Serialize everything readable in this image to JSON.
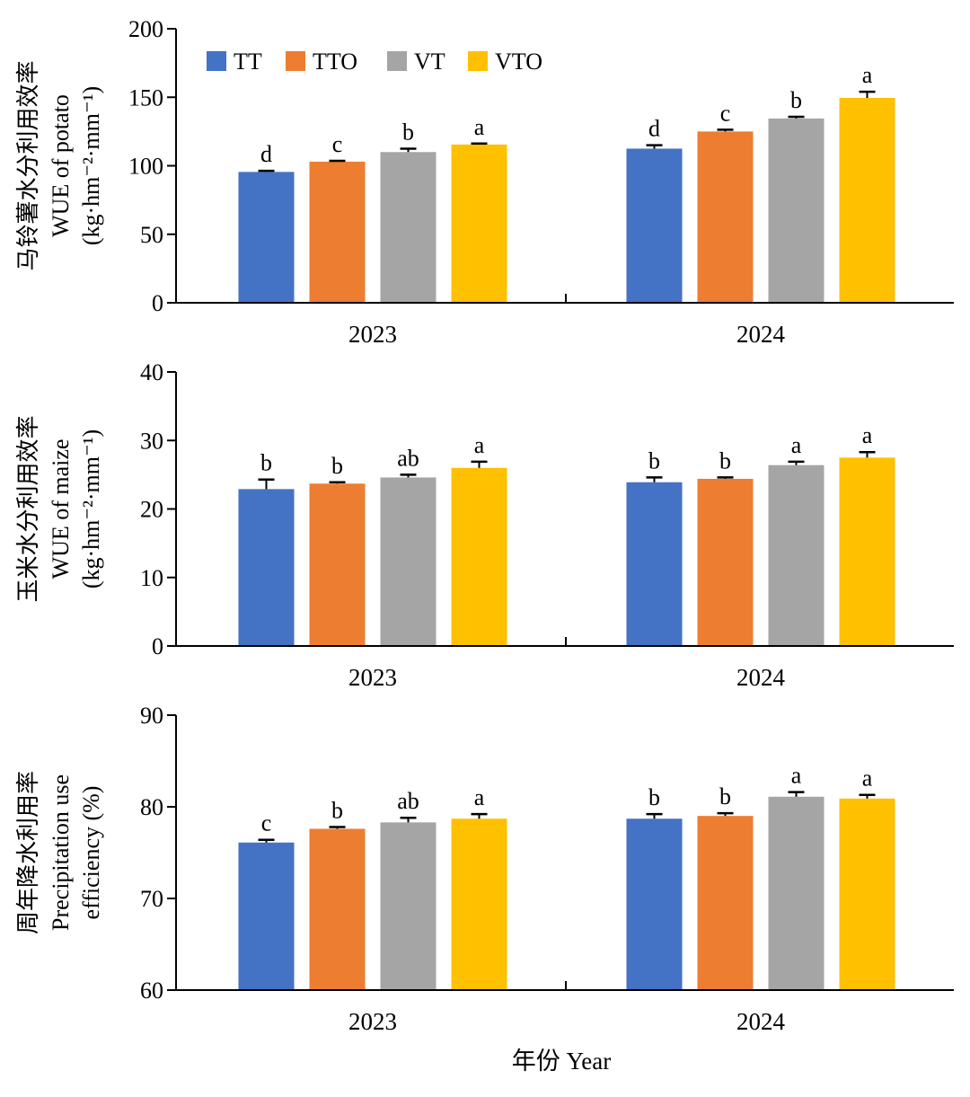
{
  "legend": [
    {
      "name": "TT",
      "color": "#4472C4"
    },
    {
      "name": "TTO",
      "color": "#ED7D31"
    },
    {
      "name": "VT",
      "color": "#A5A5A5"
    },
    {
      "name": "VTO",
      "color": "#FFC000"
    }
  ],
  "xlabel": "年份 Year",
  "chart_data": [
    {
      "type": "bar",
      "categories": [
        "2023",
        "2024"
      ],
      "ylabel_lines": [
        "马铃薯水分利用效率",
        "WUE of potato",
        "(kg·hm⁻²·mm⁻¹)"
      ],
      "ylim": [
        0,
        200
      ],
      "yticks": [
        0,
        50,
        100,
        150,
        200
      ],
      "series": [
        {
          "name": "TT",
          "values": [
            95.5,
            112.5
          ],
          "errors": [
            0.8,
            2.5
          ],
          "letters": [
            "d",
            "d"
          ]
        },
        {
          "name": "TTO",
          "values": [
            103.0,
            125.0
          ],
          "errors": [
            0.6,
            1.3
          ],
          "letters": [
            "c",
            "c"
          ]
        },
        {
          "name": "VT",
          "values": [
            110.0,
            134.5
          ],
          "errors": [
            2.5,
            1.2
          ],
          "letters": [
            "b",
            "b"
          ]
        },
        {
          "name": "VTO",
          "values": [
            115.5,
            149.5
          ],
          "errors": [
            0.7,
            4.5
          ],
          "letters": [
            "a",
            "a"
          ]
        }
      ]
    },
    {
      "type": "bar",
      "categories": [
        "2023",
        "2024"
      ],
      "ylabel_lines": [
        "玉米水分利用效率",
        "WUE of maize",
        "(kg·hm⁻²·mm⁻¹)"
      ],
      "ylim": [
        0,
        40
      ],
      "yticks": [
        0,
        10,
        20,
        30,
        40
      ],
      "series": [
        {
          "name": "TT",
          "values": [
            22.9,
            23.9
          ],
          "errors": [
            1.4,
            0.7
          ],
          "letters": [
            "b",
            "b"
          ]
        },
        {
          "name": "TTO",
          "values": [
            23.7,
            24.4
          ],
          "errors": [
            0.2,
            0.2
          ],
          "letters": [
            "b",
            "b"
          ]
        },
        {
          "name": "VT",
          "values": [
            24.6,
            26.4
          ],
          "errors": [
            0.4,
            0.5
          ],
          "letters": [
            "ab",
            "a"
          ]
        },
        {
          "name": "VTO",
          "values": [
            26.0,
            27.5
          ],
          "errors": [
            0.9,
            0.8
          ],
          "letters": [
            "a",
            "a"
          ]
        }
      ]
    },
    {
      "type": "bar",
      "categories": [
        "2023",
        "2024"
      ],
      "ylabel_lines": [
        "周年降水利用率",
        "Precipitation use",
        "efficiency (%)"
      ],
      "ylim": [
        60,
        90
      ],
      "yticks": [
        60,
        70,
        80,
        90
      ],
      "series": [
        {
          "name": "TT",
          "values": [
            76.1,
            78.7
          ],
          "errors": [
            0.3,
            0.5
          ],
          "letters": [
            "c",
            "b"
          ]
        },
        {
          "name": "TTO",
          "values": [
            77.6,
            79.0
          ],
          "errors": [
            0.2,
            0.3
          ],
          "letters": [
            "b",
            "b"
          ]
        },
        {
          "name": "VT",
          "values": [
            78.3,
            81.1
          ],
          "errors": [
            0.5,
            0.5
          ],
          "letters": [
            "ab",
            "a"
          ]
        },
        {
          "name": "VTO",
          "values": [
            78.7,
            80.9
          ],
          "errors": [
            0.5,
            0.4
          ],
          "letters": [
            "a",
            "a"
          ]
        }
      ]
    }
  ]
}
